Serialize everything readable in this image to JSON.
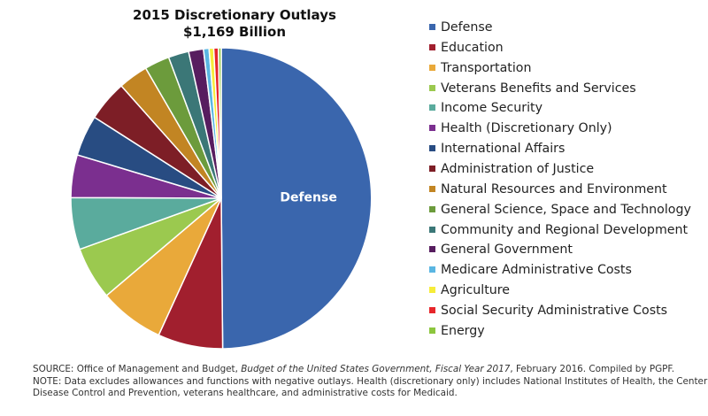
{
  "chart_data": {
    "type": "pie",
    "title": "2015 Discretionary Outlays",
    "subtitle": "$1,169 Billion",
    "slices": [
      {
        "name": "Defense",
        "value": 50.0,
        "color": "#3a66ad"
      },
      {
        "name": "Education",
        "value": 7.0,
        "color": "#a11f2e"
      },
      {
        "name": "Transportation",
        "value": 7.0,
        "color": "#e9a93a"
      },
      {
        "name": "Veterans Benefits and Services",
        "value": 5.7,
        "color": "#9bc94f"
      },
      {
        "name": "Income Security",
        "value": 5.6,
        "color": "#5aab9d"
      },
      {
        "name": "Health (Discretionary Only)",
        "value": 4.6,
        "color": "#7b2f8f"
      },
      {
        "name": "International Affairs",
        "value": 4.4,
        "color": "#284c82"
      },
      {
        "name": "Administration of Justice",
        "value": 4.4,
        "color": "#7d1e26"
      },
      {
        "name": "Natural Resources and Environment",
        "value": 3.2,
        "color": "#c28523"
      },
      {
        "name": "General Science, Space and Technology",
        "value": 2.7,
        "color": "#6c9b3c"
      },
      {
        "name": "Community and Regional Development",
        "value": 2.2,
        "color": "#3b7777"
      },
      {
        "name": "General Government",
        "value": 1.6,
        "color": "#571d5f"
      },
      {
        "name": "Medicare Administrative Costs",
        "value": 0.6,
        "color": "#5ab6e2"
      },
      {
        "name": "Agriculture",
        "value": 0.5,
        "color": "#f6ec3a"
      },
      {
        "name": "Social Security Administrative Costs",
        "value": 0.5,
        "color": "#e7262b"
      },
      {
        "name": "Energy",
        "value": 0.3,
        "color": "#8cc63e"
      }
    ],
    "slice_labels": [
      {
        "slice": "Defense",
        "text": "Defense",
        "color": "#ffffff"
      }
    ],
    "legend_position": "right"
  },
  "footnote": {
    "source_prefix": "SOURCE: Office of Management and Budget, ",
    "source_title": "Budget of the United States Government, Fiscal Year 2017",
    "source_suffix": ", February 2016. Compiled by PGPF.",
    "note_line1": "NOTE: Data excludes allowances and functions with negative outlays. Health (discretionary only) includes National Institutes of Health, the Center for",
    "note_line2": "Disease Control and Prevention, veterans healthcare, and administrative costs for Medicaid."
  }
}
